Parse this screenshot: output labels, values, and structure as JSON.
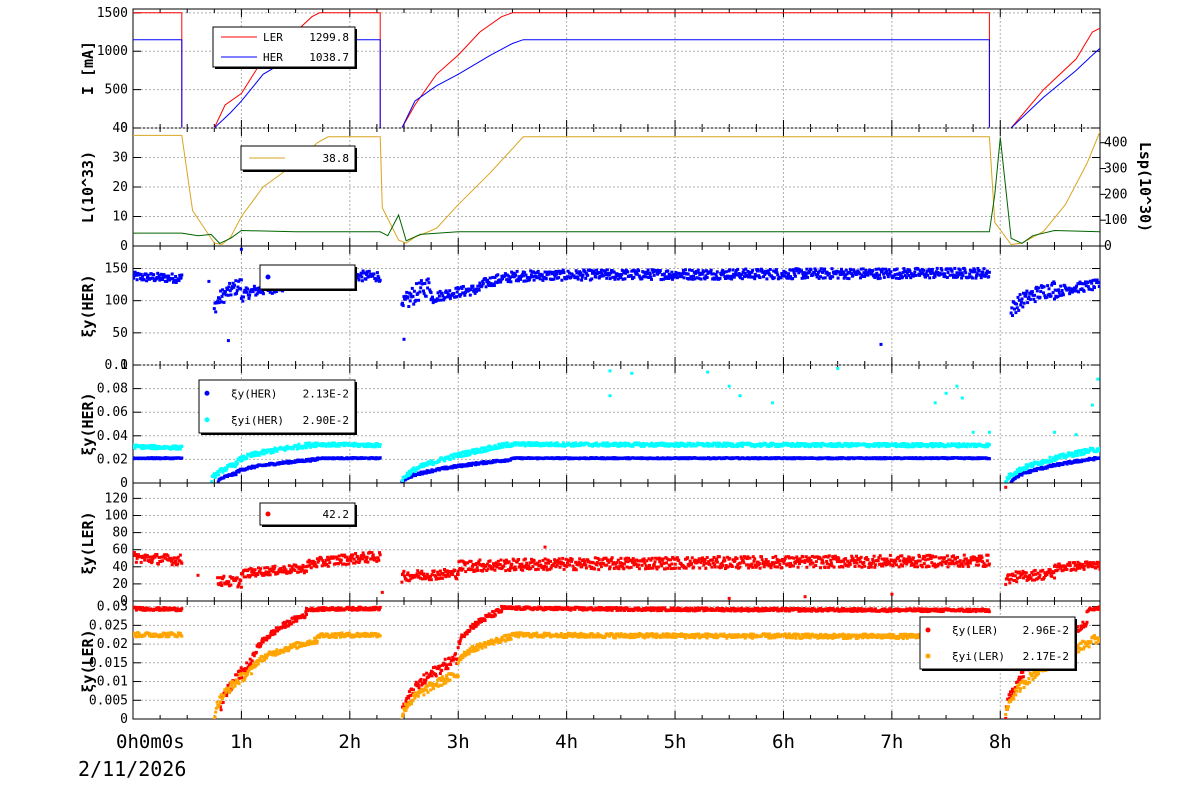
{
  "date_label": "2/11/2026",
  "x_axis": {
    "range_hours": [
      0,
      8.92
    ],
    "ticks": [
      {
        "h": 0,
        "label": "0h0m0s"
      },
      {
        "h": 1,
        "label": "1h"
      },
      {
        "h": 2,
        "label": "2h"
      },
      {
        "h": 3,
        "label": "3h"
      },
      {
        "h": 4,
        "label": "4h"
      },
      {
        "h": 5,
        "label": "5h"
      },
      {
        "h": 6,
        "label": "6h"
      },
      {
        "h": 7,
        "label": "7h"
      },
      {
        "h": 8,
        "label": "8h"
      }
    ]
  },
  "colors": {
    "ler": "#ff0000",
    "her": "#0000ff",
    "lum": "#daa520",
    "lsp": "#006400",
    "cyan": "#00ffff",
    "orange": "#ffa500",
    "grid": "#b0b0b0"
  },
  "chart_data": [
    {
      "id": "current",
      "type": "line",
      "ylabel": "I [mA]",
      "ylim": [
        0,
        1550
      ],
      "yticks": [
        0,
        500,
        1000,
        1500
      ],
      "legend": [
        {
          "name": "LER",
          "value": "1299.8",
          "color": "#ff0000"
        },
        {
          "name": "HER",
          "value": "1038.7",
          "color": "#0000ff"
        }
      ],
      "series": [
        {
          "name": "LER",
          "color": "#ff0000",
          "x": [
            0,
            0.45,
            0.45,
            0.75,
            0.85,
            1.0,
            1.2,
            1.5,
            1.65,
            1.72,
            2.28,
            2.28,
            2.48,
            2.6,
            2.8,
            3.0,
            3.2,
            3.4,
            3.5,
            7.9,
            7.9,
            8.1,
            8.4,
            8.7,
            8.85,
            8.92
          ],
          "y": [
            1500,
            1500,
            0,
            0,
            300,
            450,
            900,
            1250,
            1450,
            1500,
            1500,
            0,
            0,
            300,
            700,
            950,
            1250,
            1450,
            1500,
            1500,
            0,
            0,
            500,
            900,
            1250,
            1299.8
          ]
        },
        {
          "name": "HER",
          "color": "#0000ff",
          "x": [
            0,
            0.45,
            0.45,
            0.75,
            0.9,
            1.0,
            1.2,
            1.5,
            1.65,
            1.8,
            2.28,
            2.28,
            2.48,
            2.6,
            2.8,
            3.0,
            3.3,
            3.5,
            3.6,
            7.9,
            7.9,
            8.1,
            8.4,
            8.7,
            8.85,
            8.92
          ],
          "y": [
            1150,
            1150,
            0,
            0,
            200,
            350,
            700,
            950,
            1100,
            1150,
            1150,
            0,
            0,
            350,
            550,
            700,
            950,
            1100,
            1150,
            1150,
            0,
            0,
            400,
            750,
            950,
            1038.7
          ]
        }
      ]
    },
    {
      "id": "luminosity",
      "type": "line",
      "ylabel": "L(10^33)",
      "ylabel_right": "Lsp(10^30)",
      "ylim": [
        0,
        40
      ],
      "yticks": [
        0,
        10,
        20,
        30,
        40
      ],
      "ylim_right": [
        0,
        457
      ],
      "yticks_right": [
        0,
        100,
        200,
        300,
        400
      ],
      "legend": [
        {
          "name": "",
          "value": "38.8",
          "color": "#daa520"
        }
      ],
      "series": [
        {
          "name": "L",
          "color": "#daa520",
          "x": [
            0,
            0.45,
            0.55,
            0.75,
            0.82,
            0.9,
            1.0,
            1.2,
            1.5,
            1.7,
            1.8,
            2.28,
            2.3,
            2.45,
            2.52,
            2.6,
            2.8,
            3.0,
            3.3,
            3.5,
            3.6,
            7.9,
            7.95,
            8.1,
            8.2,
            8.4,
            8.6,
            8.8,
            8.92
          ],
          "y": [
            37.5,
            37.5,
            12,
            1,
            0.5,
            3,
            10,
            20,
            28,
            35,
            37,
            37,
            13,
            2,
            1,
            3,
            6,
            14,
            25,
            33,
            37,
            37,
            8,
            0.5,
            1,
            5,
            14,
            28,
            38.8
          ]
        },
        {
          "name": "Lsp",
          "color": "#006400",
          "axis": "right",
          "x": [
            0,
            0.45,
            0.6,
            0.72,
            0.8,
            0.9,
            1.0,
            1.5,
            2.28,
            2.35,
            2.45,
            2.52,
            2.65,
            3.0,
            7.9,
            7.95,
            8.0,
            8.1,
            8.2,
            8.3,
            8.5,
            8.92
          ],
          "y": [
            50,
            50,
            40,
            45,
            10,
            30,
            60,
            55,
            55,
            40,
            120,
            20,
            45,
            55,
            55,
            200,
            420,
            30,
            10,
            40,
            60,
            55
          ]
        }
      ]
    },
    {
      "id": "xi_y_her_lumi",
      "type": "scatter",
      "ylabel": "ξy(HER)",
      "ylim": [
        0,
        185
      ],
      "yticks": [
        0,
        50,
        100,
        150
      ],
      "legend": [
        {
          "name": "",
          "value": "",
          "color": "#0000ff"
        }
      ],
      "series": [
        {
          "name": "",
          "color": "#0000ff",
          "segments": [
            {
              "x0": 0.0,
              "x1": 0.45,
              "y0": 138,
              "y1": 135,
              "noise": 7
            },
            {
              "x0": 0.75,
              "x1": 1.0,
              "y0": 85,
              "y1": 125,
              "noise": 12
            },
            {
              "x0": 1.0,
              "x1": 1.5,
              "y0": 105,
              "y1": 125,
              "noise": 9
            },
            {
              "x0": 1.5,
              "x1": 2.28,
              "y0": 140,
              "y1": 138,
              "noise": 8
            },
            {
              "x0": 2.48,
              "x1": 2.75,
              "y0": 80,
              "y1": 125,
              "noise": 15
            },
            {
              "x0": 2.75,
              "x1": 3.2,
              "y0": 100,
              "y1": 118,
              "noise": 8
            },
            {
              "x0": 3.2,
              "x1": 3.6,
              "y0": 120,
              "y1": 140,
              "noise": 8
            },
            {
              "x0": 3.6,
              "x1": 7.9,
              "y0": 138,
              "y1": 143,
              "noise": 8
            },
            {
              "x0": 8.1,
              "x1": 8.5,
              "y0": 80,
              "y1": 120,
              "noise": 12
            },
            {
              "x0": 8.5,
              "x1": 8.92,
              "y0": 110,
              "y1": 125,
              "noise": 8
            }
          ],
          "outliers": [
            [
              0.88,
              38
            ],
            [
              1.0,
              180
            ],
            [
              2.5,
              40
            ],
            [
              6.9,
              32
            ],
            [
              0.7,
              130
            ]
          ]
        }
      ]
    },
    {
      "id": "xi_y_her",
      "type": "scatter",
      "ylabel": "ξy(HER)",
      "ylim": [
        0,
        0.1
      ],
      "yticks": [
        0,
        0.02,
        0.04,
        0.06,
        0.08,
        0.1
      ],
      "ytick_labels": [
        "0",
        "0.02",
        "0.04",
        "0.06",
        "0.08",
        "0.1"
      ],
      "legend": [
        {
          "name": "ξy(HER)",
          "value": "2.13E-2",
          "color": "#0000ff"
        },
        {
          "name": "ξyi(HER)",
          "value": "2.90E-2",
          "color": "#00ffff"
        }
      ],
      "series": [
        {
          "name": "ξy(HER)",
          "color": "#0000ff",
          "segments": [
            {
              "x0": 0.0,
              "x1": 0.45,
              "y0": 0.021,
              "y1": 0.021,
              "noise": 0.0005
            },
            {
              "x0": 0.78,
              "x1": 0.95,
              "y0": 0.0,
              "y1": 0.008,
              "noise": 0.001
            },
            {
              "x0": 0.95,
              "x1": 1.7,
              "y0": 0.008,
              "y1": 0.02,
              "noise": 0.001
            },
            {
              "x0": 1.7,
              "x1": 2.28,
              "y0": 0.021,
              "y1": 0.021,
              "noise": 0.0005
            },
            {
              "x0": 2.48,
              "x1": 3.5,
              "y0": 0.0,
              "y1": 0.02,
              "noise": 0.001
            },
            {
              "x0": 3.5,
              "x1": 7.9,
              "y0": 0.021,
              "y1": 0.021,
              "noise": 0.0005
            },
            {
              "x0": 8.1,
              "x1": 8.92,
              "y0": 0.0,
              "y1": 0.0213,
              "noise": 0.001
            }
          ]
        },
        {
          "name": "ξyi(HER)",
          "color": "#00ffff",
          "segments": [
            {
              "x0": 0.0,
              "x1": 0.45,
              "y0": 0.031,
              "y1": 0.03,
              "noise": 0.0015
            },
            {
              "x0": 0.72,
              "x1": 0.95,
              "y0": 0.0,
              "y1": 0.016,
              "noise": 0.002
            },
            {
              "x0": 0.95,
              "x1": 1.7,
              "y0": 0.016,
              "y1": 0.033,
              "noise": 0.002
            },
            {
              "x0": 1.7,
              "x1": 2.28,
              "y0": 0.033,
              "y1": 0.032,
              "noise": 0.0015
            },
            {
              "x0": 2.48,
              "x1": 3.5,
              "y0": 0.0,
              "y1": 0.033,
              "noise": 0.002
            },
            {
              "x0": 3.5,
              "x1": 7.9,
              "y0": 0.033,
              "y1": 0.032,
              "noise": 0.0015
            },
            {
              "x0": 8.05,
              "x1": 8.92,
              "y0": 0.0,
              "y1": 0.029,
              "noise": 0.002
            }
          ],
          "outliers": [
            [
              1.6,
              0.083
            ],
            [
              1.9,
              0.075
            ],
            [
              4.4,
              0.095
            ],
            [
              4.6,
              0.093
            ],
            [
              4.4,
              0.074
            ],
            [
              5.3,
              0.094
            ],
            [
              5.5,
              0.082
            ],
            [
              5.6,
              0.074
            ],
            [
              5.9,
              0.068
            ],
            [
              6.5,
              0.097
            ],
            [
              7.4,
              0.068
            ],
            [
              7.5,
              0.076
            ],
            [
              7.6,
              0.082
            ],
            [
              7.65,
              0.072
            ],
            [
              8.9,
              0.088
            ],
            [
              8.85,
              0.066
            ],
            [
              8.7,
              0.041
            ],
            [
              8.5,
              0.043
            ],
            [
              7.9,
              0.043
            ],
            [
              7.75,
              0.043
            ]
          ]
        }
      ]
    },
    {
      "id": "xi_y_ler_lumi",
      "type": "scatter",
      "ylabel": "ξy(LER)",
      "ylim": [
        0,
        138
      ],
      "yticks": [
        0,
        20,
        40,
        60,
        80,
        100,
        120
      ],
      "legend": [
        {
          "name": "",
          "value": "42.2",
          "color": "#ff0000"
        }
      ],
      "series": [
        {
          "name": "",
          "color": "#ff0000",
          "segments": [
            {
              "x0": 0.0,
              "x1": 0.45,
              "y0": 52,
              "y1": 48,
              "noise": 6
            },
            {
              "x0": 0.78,
              "x1": 1.0,
              "y0": 25,
              "y1": 22,
              "noise": 6
            },
            {
              "x0": 1.0,
              "x1": 1.6,
              "y0": 30,
              "y1": 38,
              "noise": 5
            },
            {
              "x0": 1.6,
              "x1": 2.28,
              "y0": 40,
              "y1": 52,
              "noise": 6
            },
            {
              "x0": 2.48,
              "x1": 3.0,
              "y0": 28,
              "y1": 32,
              "noise": 6
            },
            {
              "x0": 3.0,
              "x1": 7.9,
              "y0": 40,
              "y1": 47,
              "noise": 7
            },
            {
              "x0": 8.05,
              "x1": 8.5,
              "y0": 25,
              "y1": 32,
              "noise": 6
            },
            {
              "x0": 8.5,
              "x1": 8.92,
              "y0": 38,
              "y1": 42,
              "noise": 5
            }
          ],
          "outliers": [
            [
              8.05,
              133
            ],
            [
              3.8,
              63
            ],
            [
              6.2,
              5
            ],
            [
              5.5,
              3
            ],
            [
              7.0,
              8
            ],
            [
              2.3,
              10
            ],
            [
              0.6,
              30
            ]
          ]
        }
      ]
    },
    {
      "id": "xi_y_ler",
      "type": "scatter",
      "ylabel": "ξy(LER)",
      "ylim": [
        0,
        0.0315
      ],
      "yticks": [
        0,
        0.005,
        0.01,
        0.015,
        0.02,
        0.025,
        0.03
      ],
      "ytick_labels": [
        "0",
        "0.005",
        "0.01",
        "0.015",
        "0.02",
        "0.025",
        "0.03"
      ],
      "legend": [
        {
          "name": "ξy(LER)",
          "value": "2.96E-2",
          "color": "#ff0000"
        },
        {
          "name": "ξyi(LER)",
          "value": "2.17E-2",
          "color": "#ffa500"
        }
      ],
      "series": [
        {
          "name": "ξy(LER)",
          "color": "#ff0000",
          "segments": [
            {
              "x0": 0.0,
              "x1": 0.45,
              "y0": 0.0295,
              "y1": 0.0293,
              "noise": 0.0004
            },
            {
              "x0": 0.8,
              "x1": 1.1,
              "y0": 0.0,
              "y1": 0.015,
              "noise": 0.0015
            },
            {
              "x0": 1.1,
              "x1": 1.6,
              "y0": 0.015,
              "y1": 0.028,
              "noise": 0.0008
            },
            {
              "x0": 1.6,
              "x1": 2.28,
              "y0": 0.0292,
              "y1": 0.0295,
              "noise": 0.0004
            },
            {
              "x0": 2.48,
              "x1": 3.0,
              "y0": 0.0,
              "y1": 0.0165,
              "noise": 0.0015
            },
            {
              "x0": 3.0,
              "x1": 3.4,
              "y0": 0.019,
              "y1": 0.029,
              "noise": 0.0008
            },
            {
              "x0": 3.4,
              "x1": 7.9,
              "y0": 0.0297,
              "y1": 0.029,
              "noise": 0.0004
            },
            {
              "x0": 8.05,
              "x1": 8.8,
              "y0": 0.0,
              "y1": 0.026,
              "noise": 0.0012
            },
            {
              "x0": 8.8,
              "x1": 8.92,
              "y0": 0.029,
              "y1": 0.0296,
              "noise": 0.0004
            }
          ]
        },
        {
          "name": "ξyi(LER)",
          "color": "#ffa500",
          "segments": [
            {
              "x0": 0.0,
              "x1": 0.45,
              "y0": 0.0225,
              "y1": 0.0225,
              "noise": 0.0006
            },
            {
              "x0": 0.75,
              "x1": 1.1,
              "y0": 0.0,
              "y1": 0.013,
              "noise": 0.0012
            },
            {
              "x0": 1.1,
              "x1": 1.7,
              "y0": 0.013,
              "y1": 0.021,
              "noise": 0.0008
            },
            {
              "x0": 1.7,
              "x1": 2.28,
              "y0": 0.0222,
              "y1": 0.0225,
              "noise": 0.0006
            },
            {
              "x0": 2.48,
              "x1": 3.0,
              "y0": 0.0,
              "y1": 0.012,
              "noise": 0.0012
            },
            {
              "x0": 3.0,
              "x1": 3.5,
              "y0": 0.015,
              "y1": 0.022,
              "noise": 0.0008
            },
            {
              "x0": 3.5,
              "x1": 7.9,
              "y0": 0.0225,
              "y1": 0.022,
              "noise": 0.0006
            },
            {
              "x0": 8.05,
              "x1": 8.92,
              "y0": 0.0,
              "y1": 0.0217,
              "noise": 0.0012
            }
          ]
        }
      ]
    }
  ]
}
